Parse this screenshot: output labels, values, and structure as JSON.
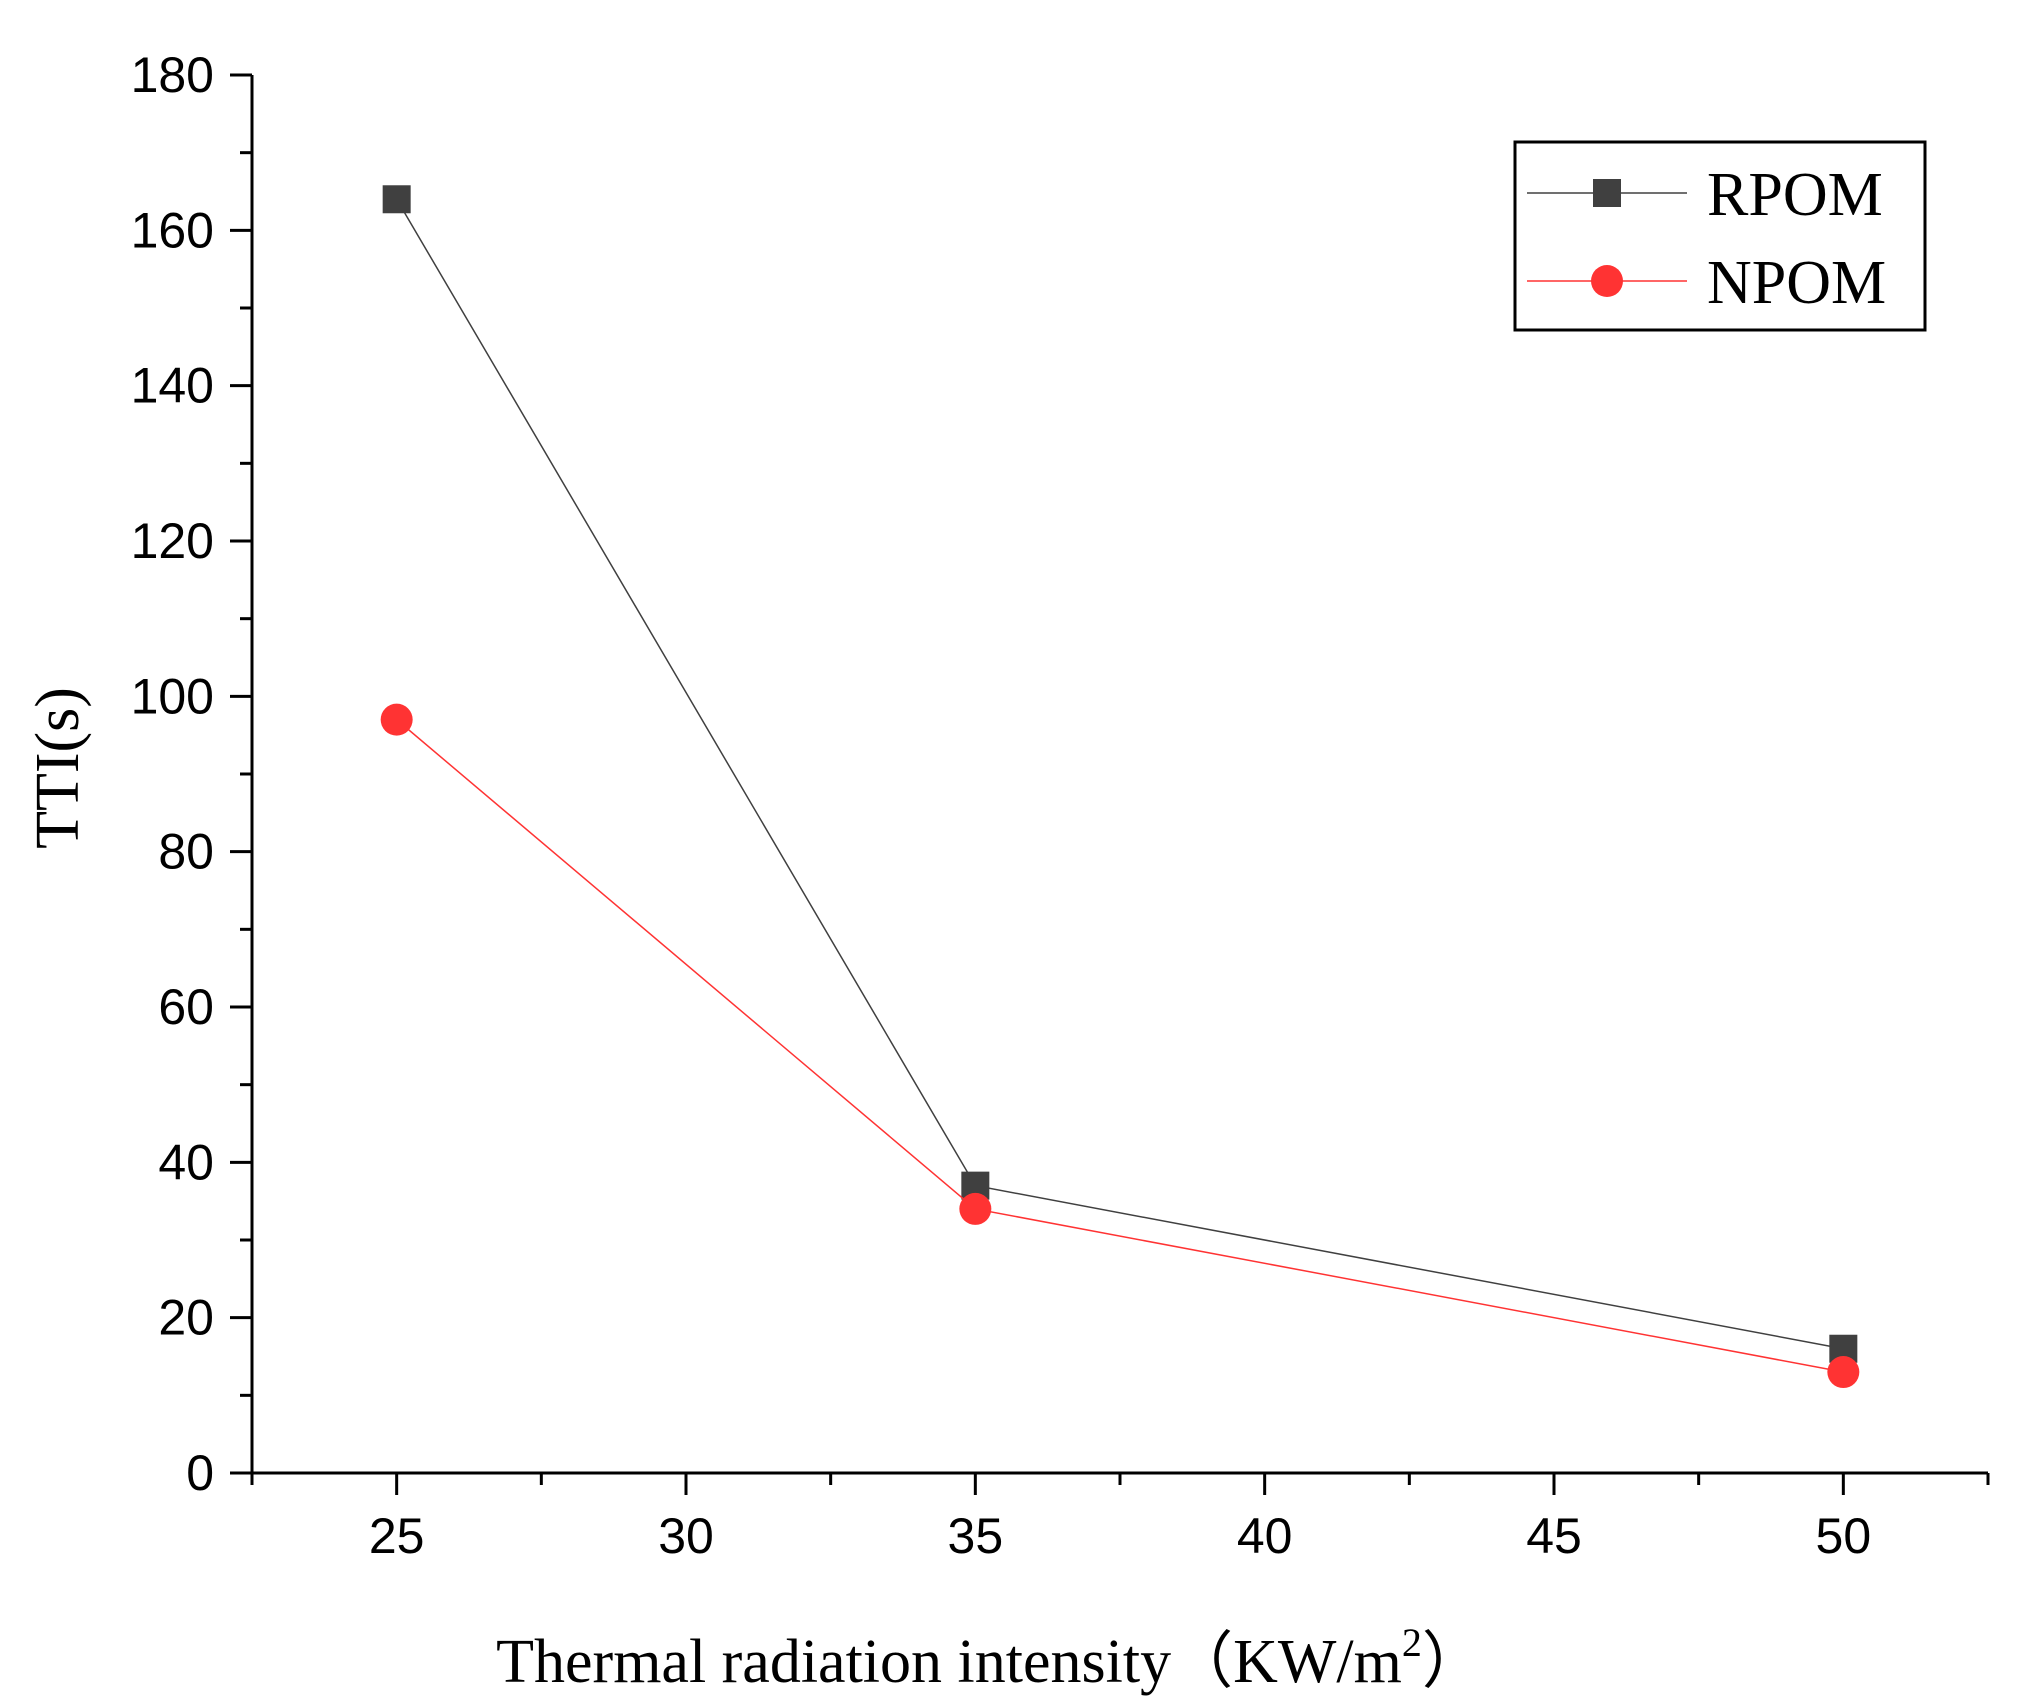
{
  "chart_data": {
    "type": "line",
    "title": "",
    "xlabel": "Thermal radiation intensity（KW/m",
    "xlabel_superscript": "2",
    "xlabel_close": "）",
    "ylabel": "TTI(s)",
    "x": [
      25,
      35,
      50
    ],
    "xlim": [
      22.5,
      52.5
    ],
    "ylim": [
      0,
      180
    ],
    "xticks": [
      25,
      30,
      35,
      40,
      45,
      50
    ],
    "yticks": [
      0,
      20,
      40,
      60,
      80,
      100,
      120,
      140,
      160,
      180
    ],
    "grid": false,
    "legend_position": "top-right",
    "series": [
      {
        "name": "RPOM",
        "values": [
          164,
          37,
          16
        ],
        "color": "#404040",
        "marker": "square"
      },
      {
        "name": "NPOM",
        "values": [
          97,
          34,
          13
        ],
        "color": "#ff3333",
        "marker": "circle"
      }
    ]
  }
}
